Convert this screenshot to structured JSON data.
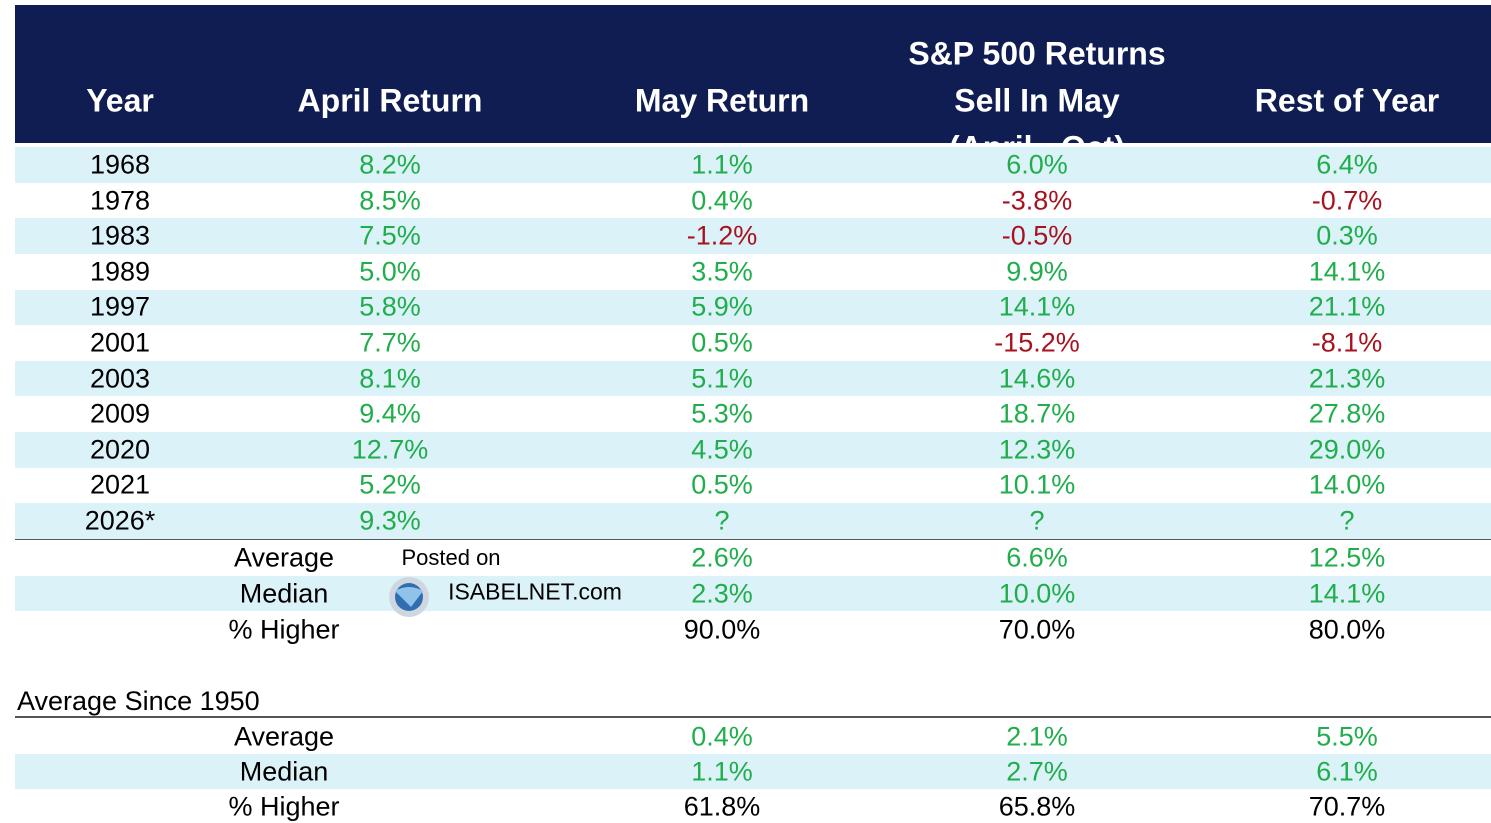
{
  "header": {
    "columns": [
      [
        "Year"
      ],
      [
        "April Return"
      ],
      [
        "May Return"
      ],
      [
        "S&P 500 Returns",
        "Sell In May",
        "(April - Oct)"
      ],
      [
        "Rest of Year"
      ]
    ]
  },
  "colors": {
    "positive": "#1fae4b",
    "negative": "#a8121e",
    "neutral": "#000000"
  },
  "table": {
    "rows": [
      [
        "1968",
        "8.2%",
        "1.1%",
        "6.0%",
        "6.4%"
      ],
      [
        "1978",
        "8.5%",
        "0.4%",
        "-3.8%",
        "-0.7%"
      ],
      [
        "1983",
        "7.5%",
        "-1.2%",
        "-0.5%",
        "0.3%"
      ],
      [
        "1989",
        "5.0%",
        "3.5%",
        "9.9%",
        "14.1%"
      ],
      [
        "1997",
        "5.8%",
        "5.9%",
        "14.1%",
        "21.1%"
      ],
      [
        "2001",
        "7.7%",
        "0.5%",
        "-15.2%",
        "-8.1%"
      ],
      [
        "2003",
        "8.1%",
        "5.1%",
        "14.6%",
        "21.3%"
      ],
      [
        "2009",
        "9.4%",
        "5.3%",
        "18.7%",
        "27.8%"
      ],
      [
        "2020",
        "12.7%",
        "4.5%",
        "12.3%",
        "29.0%"
      ],
      [
        "2021",
        "5.2%",
        "0.5%",
        "10.1%",
        "14.0%"
      ],
      [
        "2026*",
        "9.3%",
        "?",
        "?",
        "?"
      ]
    ]
  },
  "summary": {
    "rows": [
      {
        "label": "Average",
        "values": [
          "2.6%",
          "6.6%",
          "12.5%"
        ]
      },
      {
        "label": "Median",
        "values": [
          "2.3%",
          "10.0%",
          "14.1%"
        ]
      },
      {
        "label": "% Higher",
        "values": [
          "90.0%",
          "70.0%",
          "80.0%"
        ]
      }
    ]
  },
  "since_1950": {
    "title": "Average Since 1950",
    "rows": [
      {
        "label": "Average",
        "values": [
          "0.4%",
          "2.1%",
          "5.5%"
        ]
      },
      {
        "label": "Median",
        "values": [
          "1.1%",
          "2.7%",
          "6.1%"
        ]
      },
      {
        "label": "% Higher",
        "values": [
          "61.8%",
          "65.8%",
          "70.7%"
        ]
      }
    ]
  },
  "watermark": {
    "posted": "Posted on",
    "site": "ISABELNET.com"
  }
}
